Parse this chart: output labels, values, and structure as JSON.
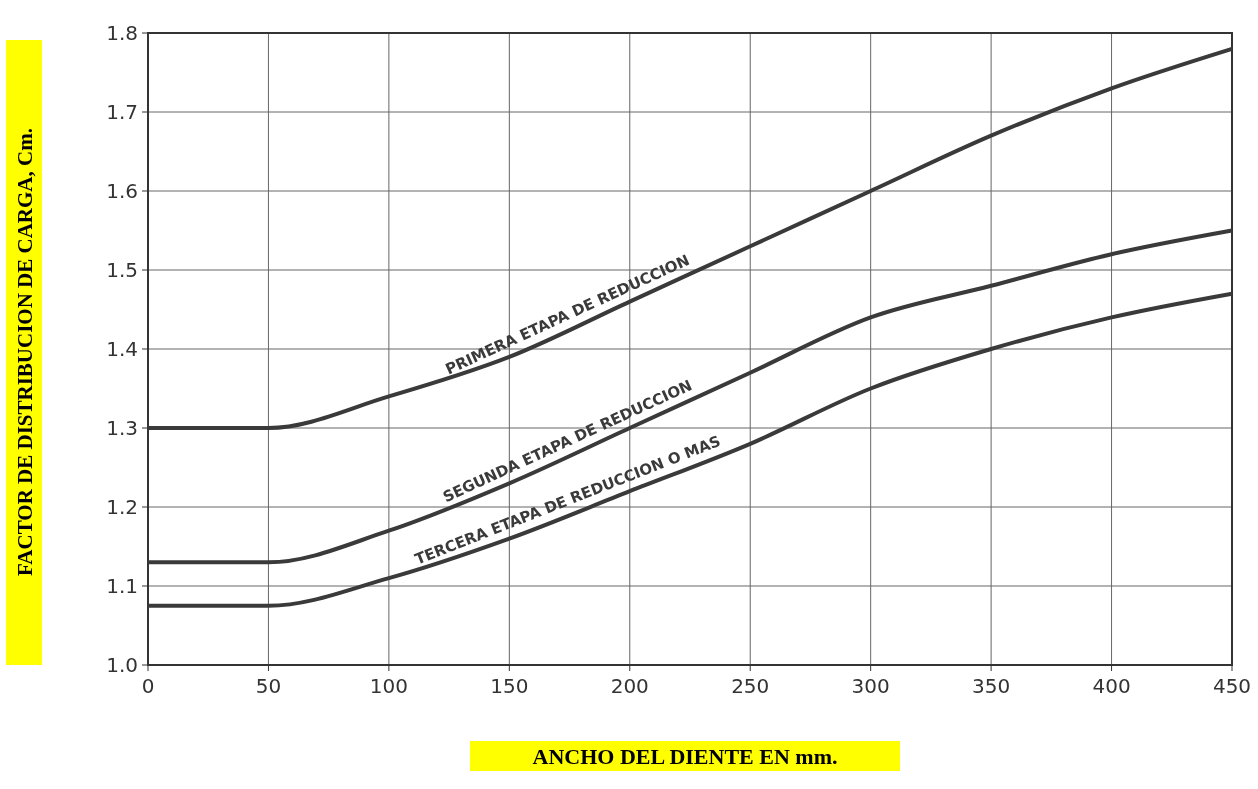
{
  "chart_data": {
    "type": "line",
    "xlabel": "ANCHO DEL DIENTE EN mm.",
    "ylabel": "FACTOR DE DISTRIBUCION DE CARGA, Cm.",
    "x": [
      0,
      25,
      50,
      100,
      150,
      200,
      250,
      300,
      350,
      400,
      450
    ],
    "series": [
      {
        "name": "PRIMERA ETAPA DE REDUCCION",
        "color": "#3a3a3a",
        "values": [
          1.3,
          1.3,
          1.3,
          1.34,
          1.39,
          1.46,
          1.53,
          1.6,
          1.67,
          1.73,
          1.78
        ]
      },
      {
        "name": "SEGUNDA ETAPA DE REDUCCION",
        "color": "#3a3a3a",
        "values": [
          1.13,
          1.13,
          1.13,
          1.17,
          1.23,
          1.3,
          1.37,
          1.44,
          1.48,
          1.52,
          1.55
        ]
      },
      {
        "name": "TERCERA ETAPA DE REDUCCION O MAS",
        "color": "#3a3a3a",
        "values": [
          1.075,
          1.075,
          1.075,
          1.11,
          1.16,
          1.22,
          1.28,
          1.35,
          1.4,
          1.44,
          1.47
        ]
      }
    ],
    "xlim": [
      0,
      450
    ],
    "xticks": [
      0,
      50,
      100,
      150,
      200,
      250,
      300,
      350,
      400,
      450
    ],
    "ylim": [
      1,
      1.8
    ],
    "yticks": [
      {
        "value": 1,
        "label": "1.0"
      },
      1.1,
      1.2,
      1.3,
      1.4,
      1.5,
      1.6,
      1.7,
      1.8
    ],
    "grid": true,
    "marker": "none",
    "line_style": "solid"
  }
}
